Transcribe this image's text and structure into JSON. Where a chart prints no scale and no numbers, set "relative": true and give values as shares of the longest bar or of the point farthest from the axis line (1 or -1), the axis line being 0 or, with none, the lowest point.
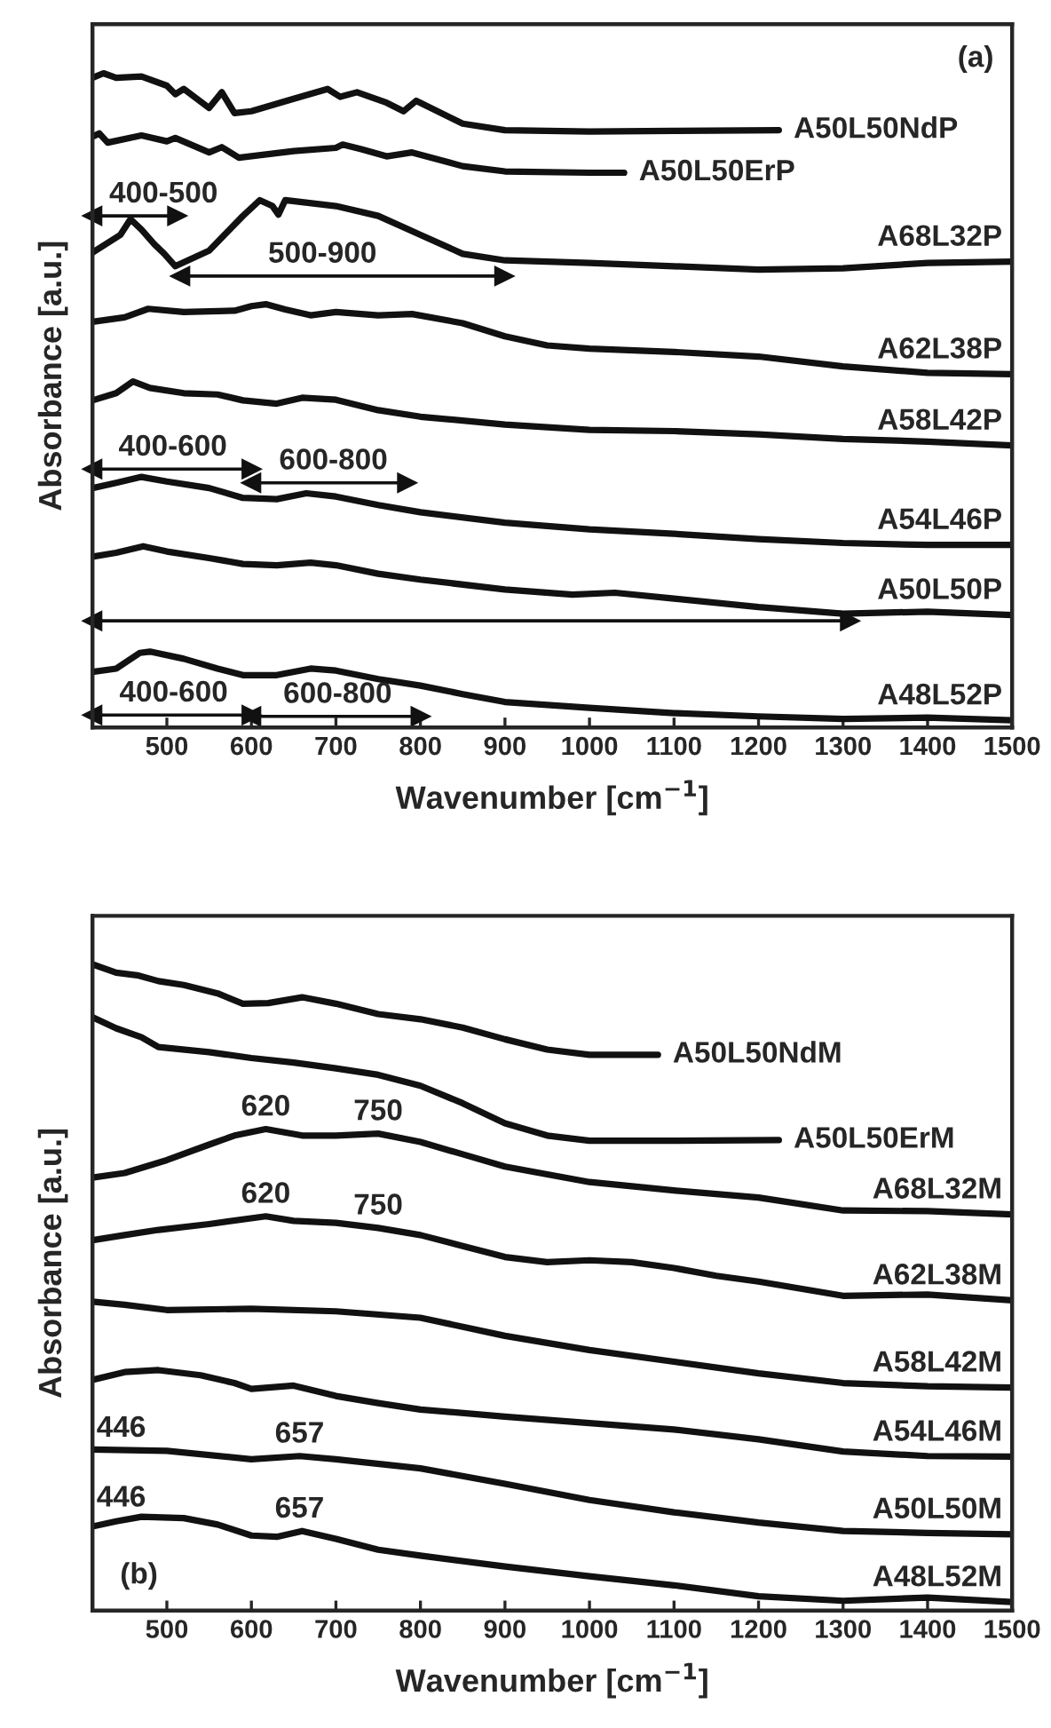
{
  "chart_data": [
    {
      "type": "line",
      "relative": true,
      "xlabel": "Wavenumber [cm$^{−1}$]",
      "ylabel": "Absorbance [a.u.]",
      "xlim": [
        412,
        1500
      ],
      "xticks": [
        500,
        600,
        700,
        800,
        900,
        1000,
        1100,
        1200,
        1300,
        1400,
        1500
      ],
      "tick_labels": "x",
      "line_style": "solid",
      "series": [
        {
          "name": "A50L50NdP",
          "color": "#111111",
          "x": [
            412,
            425,
            440,
            470,
            500,
            510,
            520,
            550,
            565,
            580,
            600,
            650,
            690,
            705,
            725,
            760,
            780,
            795,
            850,
            900,
            1000,
            1100,
            1224
          ],
          "values": [
            0.993,
            1,
            0.993,
            0.995,
            0.981,
            0.968,
            0.976,
            0.947,
            0.971,
            0.939,
            0.942,
            0.961,
            0.976,
            0.964,
            0.971,
            0.955,
            0.942,
            0.958,
            0.923,
            0.913,
            0.911,
            0.912,
            0.913
          ]
        },
        {
          "name": "A50L50ErP",
          "color": "#111111",
          "x": [
            412,
            420,
            430,
            470,
            500,
            510,
            550,
            565,
            585,
            650,
            700,
            708,
            730,
            760,
            790,
            850,
            900,
            1000,
            1041
          ],
          "values": [
            0.903,
            0.908,
            0.894,
            0.905,
            0.896,
            0.901,
            0.879,
            0.887,
            0.871,
            0.881,
            0.886,
            0.891,
            0.884,
            0.873,
            0.879,
            0.858,
            0.85,
            0.848,
            0.848
          ]
        },
        {
          "name": "A68L32P",
          "color": "#111111",
          "x": [
            412,
            445,
            457,
            470,
            485,
            497,
            510,
            550,
            590,
            610,
            625,
            632,
            640,
            700,
            750,
            800,
            850,
            900,
            1000,
            1100,
            1200,
            1300,
            1400,
            1500
          ],
          "values": [
            0.726,
            0.753,
            0.777,
            0.761,
            0.739,
            0.724,
            0.705,
            0.729,
            0.782,
            0.806,
            0.797,
            0.784,
            0.806,
            0.797,
            0.782,
            0.753,
            0.724,
            0.714,
            0.71,
            0.705,
            0.7,
            0.702,
            0.71,
            0.712
          ]
        },
        {
          "name": "A62L38P",
          "color": "#111111",
          "x": [
            412,
            450,
            478,
            520,
            580,
            600,
            617,
            640,
            670,
            700,
            750,
            790,
            850,
            900,
            950,
            1000,
            1100,
            1200,
            1300,
            1400,
            1500
          ],
          "values": [
            0.62,
            0.627,
            0.64,
            0.635,
            0.637,
            0.644,
            0.647,
            0.639,
            0.63,
            0.635,
            0.63,
            0.632,
            0.618,
            0.598,
            0.584,
            0.579,
            0.574,
            0.567,
            0.552,
            0.542,
            0.54
          ]
        },
        {
          "name": "A58L42P",
          "color": "#111111",
          "x": [
            412,
            440,
            460,
            480,
            520,
            560,
            590,
            630,
            660,
            700,
            750,
            800,
            900,
            1000,
            1100,
            1200,
            1300,
            1400,
            1500
          ],
          "values": [
            0.5,
            0.511,
            0.529,
            0.519,
            0.511,
            0.509,
            0.5,
            0.495,
            0.504,
            0.501,
            0.485,
            0.475,
            0.463,
            0.455,
            0.453,
            0.448,
            0.441,
            0.437,
            0.431
          ]
        },
        {
          "name": "A54L46P",
          "color": "#111111",
          "x": [
            412,
            440,
            470,
            500,
            550,
            590,
            630,
            665,
            700,
            750,
            800,
            900,
            1000,
            1100,
            1200,
            1300,
            1400,
            1500
          ],
          "values": [
            0.366,
            0.374,
            0.383,
            0.376,
            0.366,
            0.351,
            0.349,
            0.358,
            0.353,
            0.34,
            0.329,
            0.313,
            0.303,
            0.296,
            0.288,
            0.282,
            0.279,
            0.279
          ]
        },
        {
          "name": "A50L50P",
          "color": "#111111",
          "x": [
            412,
            440,
            472,
            500,
            550,
            590,
            630,
            670,
            700,
            750,
            800,
            900,
            980,
            1030,
            1100,
            1200,
            1300,
            1400,
            1500
          ],
          "values": [
            0.261,
            0.267,
            0.277,
            0.269,
            0.259,
            0.25,
            0.248,
            0.252,
            0.248,
            0.235,
            0.226,
            0.211,
            0.203,
            0.206,
            0.197,
            0.184,
            0.174,
            0.177,
            0.172
          ]
        },
        {
          "name": "A48L52P",
          "color": "#111111",
          "x": [
            412,
            440,
            468,
            480,
            520,
            560,
            590,
            630,
            670,
            700,
            750,
            800,
            850,
            900,
            1000,
            1100,
            1200,
            1300,
            1400,
            1500
          ],
          "values": [
            0.085,
            0.09,
            0.114,
            0.116,
            0.105,
            0.09,
            0.08,
            0.08,
            0.09,
            0.087,
            0.074,
            0.064,
            0.051,
            0.039,
            0.03,
            0.022,
            0.017,
            0.013,
            0.015,
            0.011
          ]
        },
        {
          "color": "#111111",
          "marker": "triangle",
          "x": [
            412,
            512
          ],
          "values": [
            0.782,
            0.782
          ]
        },
        {
          "color": "#111111",
          "marker": "triangle",
          "x": [
            516,
            899
          ],
          "values": [
            0.69,
            0.69
          ]
        },
        {
          "color": "#111111",
          "marker": "triangle",
          "x": [
            412,
            600
          ],
          "values": [
            0.395,
            0.395
          ]
        },
        {
          "color": "#111111",
          "marker": "triangle",
          "x": [
            600,
            784
          ],
          "values": [
            0.374,
            0.374
          ]
        },
        {
          "color": "#111111",
          "marker": "triangle",
          "x": [
            412,
            1308
          ],
          "values": [
            0.163,
            0.163
          ]
        },
        {
          "color": "#111111",
          "marker": "triangle",
          "x": [
            412,
            600
          ],
          "values": [
            0.019,
            0.019
          ]
        },
        {
          "color": "#111111",
          "marker": "triangle",
          "x": [
            600,
            800
          ],
          "values": [
            0.017,
            0.017
          ]
        }
      ],
      "annotations": [
        "(a)",
        {
          "text": "400-500",
          "x": 496,
          "y": 0.782
        },
        {
          "text": "500-900",
          "x": 684,
          "y": 0.69
        },
        {
          "text": "400-600",
          "x": 507,
          "y": 0.395
        },
        {
          "text": "600-800",
          "x": 697,
          "y": 0.374
        },
        {
          "text": "400-600",
          "x": 508,
          "y": 0.019
        },
        {
          "text": "600-800",
          "x": 702,
          "y": 0.017
        }
      ]
    },
    {
      "type": "line",
      "relative": true,
      "xlabel": "Wavenumber [cm$^{−1}$]",
      "ylabel": "Absorbance [a.u.]",
      "xlim": [
        412,
        1500
      ],
      "xticks": [
        500,
        600,
        700,
        800,
        900,
        1000,
        1100,
        1200,
        1300,
        1400,
        1500
      ],
      "tick_labels": "x",
      "line_style": "solid",
      "series": [
        {
          "name": "A50L50NdM",
          "color": "#111111",
          "x": [
            412,
            440,
            465,
            490,
            520,
            560,
            590,
            620,
            660,
            700,
            750,
            800,
            850,
            900,
            950,
            1000,
            1081
          ],
          "values": [
            1,
            0.987,
            0.983,
            0.974,
            0.968,
            0.955,
            0.939,
            0.94,
            0.949,
            0.939,
            0.923,
            0.915,
            0.902,
            0.884,
            0.868,
            0.86,
            0.86
          ]
        },
        {
          "name": "A50L50ErM",
          "color": "#111111",
          "x": [
            412,
            440,
            470,
            490,
            550,
            600,
            650,
            700,
            750,
            800,
            850,
            900,
            950,
            1000,
            1100,
            1224
          ],
          "values": [
            0.918,
            0.901,
            0.887,
            0.872,
            0.864,
            0.855,
            0.848,
            0.839,
            0.829,
            0.812,
            0.785,
            0.754,
            0.735,
            0.727,
            0.727,
            0.728
          ]
        },
        {
          "name": "A68L32M",
          "color": "#111111",
          "x": [
            412,
            450,
            500,
            550,
            580,
            617,
            660,
            700,
            750,
            800,
            850,
            900,
            1000,
            1100,
            1200,
            1300,
            1400,
            1500
          ],
          "values": [
            0.67,
            0.677,
            0.697,
            0.721,
            0.735,
            0.745,
            0.735,
            0.735,
            0.738,
            0.725,
            0.706,
            0.687,
            0.663,
            0.65,
            0.639,
            0.619,
            0.618,
            0.613
          ]
        },
        {
          "name": "A62L38M",
          "color": "#111111",
          "x": [
            412,
            450,
            490,
            550,
            617,
            650,
            700,
            750,
            800,
            850,
            900,
            950,
            1000,
            1050,
            1100,
            1150,
            1200,
            1300,
            1400,
            1500
          ],
          "values": [
            0.573,
            0.581,
            0.589,
            0.598,
            0.61,
            0.603,
            0.6,
            0.592,
            0.581,
            0.564,
            0.547,
            0.539,
            0.542,
            0.539,
            0.53,
            0.518,
            0.509,
            0.487,
            0.489,
            0.48
          ]
        },
        {
          "name": "A58L42M",
          "color": "#111111",
          "x": [
            412,
            450,
            500,
            600,
            700,
            800,
            900,
            1000,
            1100,
            1200,
            1300,
            1400,
            1500
          ],
          "values": [
            0.478,
            0.473,
            0.465,
            0.467,
            0.463,
            0.453,
            0.425,
            0.403,
            0.385,
            0.367,
            0.352,
            0.347,
            0.345
          ]
        },
        {
          "name": "A54L46M",
          "color": "#111111",
          "x": [
            412,
            450,
            490,
            540,
            580,
            600,
            650,
            700,
            750,
            800,
            900,
            1000,
            1100,
            1200,
            1300,
            1400,
            1500
          ],
          "values": [
            0.357,
            0.369,
            0.372,
            0.364,
            0.352,
            0.343,
            0.348,
            0.332,
            0.321,
            0.311,
            0.3,
            0.29,
            0.28,
            0.265,
            0.246,
            0.239,
            0.238
          ]
        },
        {
          "name": "A50L50M",
          "color": "#111111",
          "x": [
            412,
            500,
            600,
            657,
            700,
            800,
            900,
            1000,
            1100,
            1200,
            1300,
            1400,
            1500
          ],
          "values": [
            0.249,
            0.247,
            0.234,
            0.239,
            0.234,
            0.22,
            0.196,
            0.171,
            0.152,
            0.136,
            0.123,
            0.12,
            0.118
          ]
        },
        {
          "name": "A48L52M",
          "color": "#111111",
          "x": [
            412,
            440,
            470,
            520,
            560,
            600,
            630,
            660,
            700,
            750,
            800,
            900,
            1000,
            1100,
            1200,
            1300,
            1400,
            1500
          ],
          "values": [
            0.13,
            0.138,
            0.145,
            0.143,
            0.133,
            0.116,
            0.114,
            0.123,
            0.111,
            0.094,
            0.085,
            0.068,
            0.053,
            0.039,
            0.022,
            0.015,
            0.02,
            0.013
          ]
        }
      ],
      "annotations": [
        "(b)",
        {
          "text": "620",
          "x": 617,
          "y": 0.745
        },
        {
          "text": "750",
          "x": 750,
          "y": 0.738
        },
        {
          "text": "620",
          "x": 617,
          "y": 0.61
        },
        {
          "text": "750",
          "x": 750,
          "y": 0.592
        },
        {
          "text": "446",
          "x": 446,
          "y": 0.248
        },
        {
          "text": "657",
          "x": 657,
          "y": 0.239
        },
        {
          "text": "446",
          "x": 446,
          "y": 0.14
        },
        {
          "text": "657",
          "x": 657,
          "y": 0.123
        }
      ]
    }
  ]
}
